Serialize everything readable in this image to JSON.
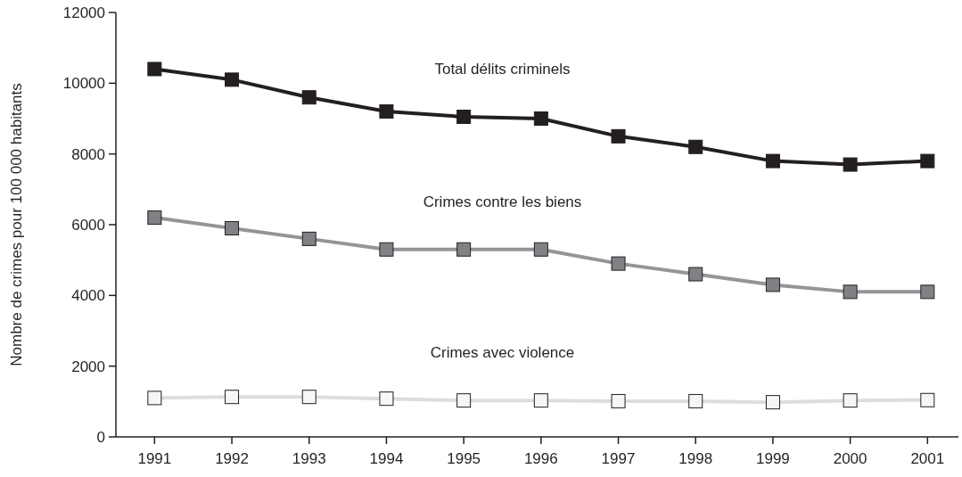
{
  "chart_data": {
    "type": "line",
    "ylabel": "Nombre de crimes pour 100 000 habitants",
    "x": [
      1991,
      1992,
      1993,
      1994,
      1995,
      1996,
      1997,
      1998,
      1999,
      2000,
      2001
    ],
    "xlim": [
      1990.5,
      2001.4
    ],
    "xticks": [
      1991,
      1992,
      1993,
      1994,
      1995,
      1996,
      1997,
      1998,
      1999,
      2000,
      2001
    ],
    "ylim": [
      0,
      12000
    ],
    "yticks": [
      0,
      2000,
      4000,
      6000,
      8000,
      10000,
      12000
    ],
    "grid": false,
    "marker": "square",
    "line_style": "solid",
    "series": [
      {
        "name": "Total délits criminels",
        "color": "#231f20",
        "values": [
          10400,
          10100,
          9600,
          9200,
          9050,
          9000,
          8500,
          8200,
          7800,
          7700,
          7800
        ]
      },
      {
        "name": "Crimes contre les biens",
        "color": "#939598",
        "values": [
          6200,
          5900,
          5600,
          5300,
          5300,
          5300,
          4900,
          4600,
          4300,
          4100,
          4100
        ]
      },
      {
        "name": "Crimes avec violence",
        "color": "#dcdddd",
        "values": [
          1100,
          1130,
          1130,
          1080,
          1030,
          1030,
          1010,
          1010,
          980,
          1030,
          1040
        ]
      }
    ]
  }
}
